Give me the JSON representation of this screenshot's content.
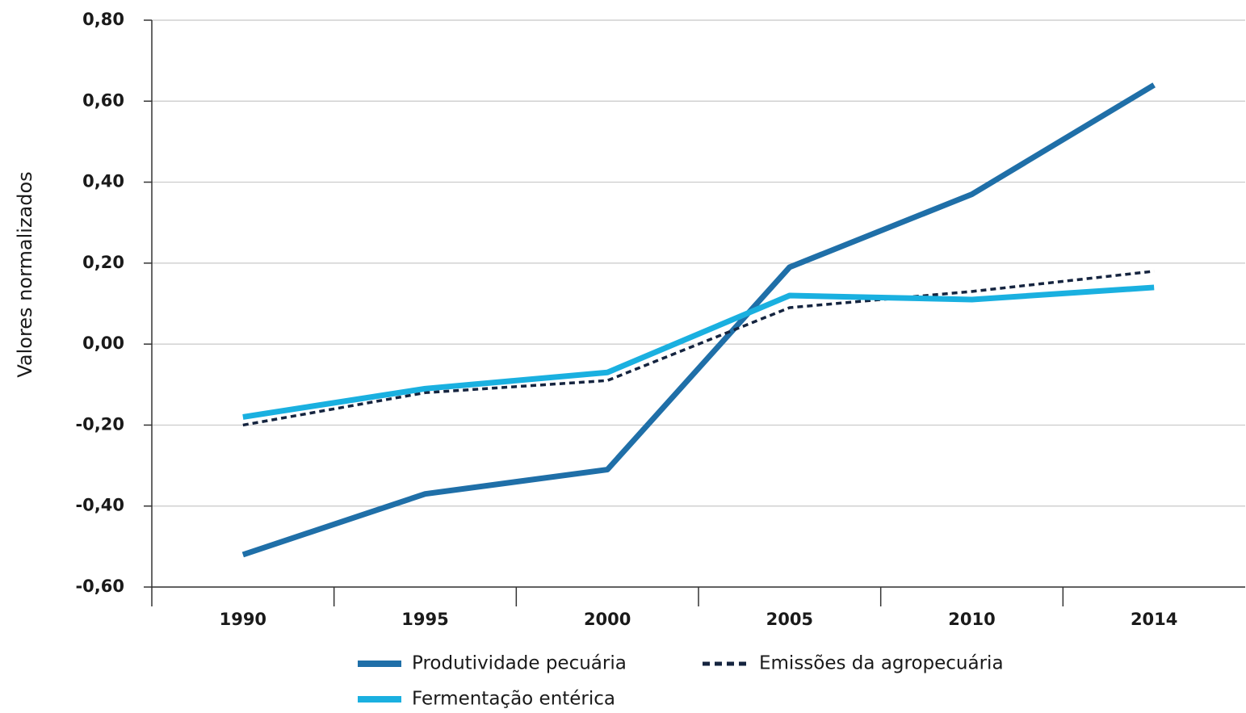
{
  "chart_data": {
    "type": "line",
    "y_label": "Valores normalizados",
    "categories": [
      "1990",
      "1995",
      "2000",
      "2005",
      "2010",
      "2014"
    ],
    "series": [
      {
        "name": "Produtividade pecuária",
        "color": "#1f6fa8",
        "dash": false,
        "values": [
          -0.52,
          -0.37,
          -0.31,
          0.19,
          0.37,
          0.64
        ]
      },
      {
        "name": "Emissões da agropecuária",
        "color": "#15243f",
        "dash": true,
        "values": [
          -0.2,
          -0.12,
          -0.09,
          0.09,
          0.13,
          0.18
        ]
      },
      {
        "name": "Fermentação entérica",
        "color": "#1ab0e0",
        "dash": false,
        "values": [
          -0.18,
          -0.11,
          -0.07,
          0.12,
          0.11,
          0.14
        ]
      }
    ],
    "ylim": [
      -0.6,
      0.8
    ],
    "yticks": [
      {
        "value": -0.6,
        "label": "-0,60"
      },
      {
        "value": -0.4,
        "label": "-0,40"
      },
      {
        "value": -0.2,
        "label": "-0,20"
      },
      {
        "value": 0,
        "label": "0,00"
      },
      {
        "value": 0.2,
        "label": "0,20"
      },
      {
        "value": 0.4,
        "label": "0,40"
      },
      {
        "value": 0.6,
        "label": "0,60"
      },
      {
        "value": 0.8,
        "label": "0,80"
      }
    ],
    "grid": true
  }
}
